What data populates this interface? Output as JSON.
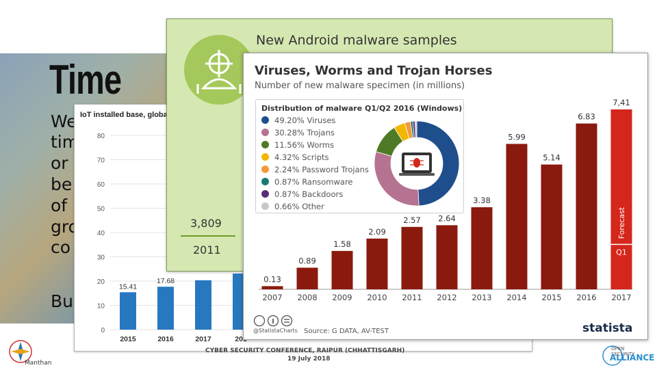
{
  "slide": {
    "title": "Time",
    "text_lines": [
      "We",
      "tim",
      "or",
      "be",
      "of",
      "gro",
      "co"
    ],
    "bottom_text": "Bu",
    "conference_line1": "CYBER SECURITY CONFERENCE, RAIPUR (CHHATTISGARH)",
    "conference_line2": "19 July 2018",
    "logo_left_text": "Manthan",
    "logo_right_text_1": "OPEN SECURITY",
    "logo_right_text_2": "ALLIANCE"
  },
  "iot_chart": {
    "title": "IoT installed base, globa",
    "chart_data": {
      "type": "bar",
      "title": "IoT installed base, globa",
      "categories": [
        "2015",
        "2016",
        "2017",
        "201"
      ],
      "values": [
        15.41,
        17.68,
        20.35,
        23.1
      ],
      "value_labels": [
        "15.41",
        "17.68",
        "",
        ""
      ],
      "yticks": [
        0,
        10,
        20,
        30,
        40,
        50,
        60,
        70,
        80
      ],
      "ylim": [
        0,
        80
      ],
      "color": "#2878c0",
      "grid": true
    }
  },
  "android_chart": {
    "title": "New Android malware samples",
    "value": "3,809",
    "year": "2011",
    "circle_color": "#a4c85b",
    "icon": "android-robot-target-icon"
  },
  "statista_chart": {
    "title": "Viruses, Worms and Trojan Horses",
    "subtitle": "Number of new malware specimen (in millions)",
    "forecast_label": "Forecast",
    "q1_label": "Q1",
    "source": "Source: G DATA, AV-TEST",
    "handle": "@StatistaCharts",
    "logo": "statista",
    "chart_data": {
      "type": "bar",
      "title": "Viruses, Worms and Trojan Horses",
      "ylabel": "",
      "categories": [
        "2007",
        "2008",
        "2009",
        "2010",
        "2011",
        "2012",
        "2013",
        "2014",
        "2015",
        "2016",
        "2017"
      ],
      "values": [
        0.13,
        0.89,
        1.58,
        2.09,
        2.57,
        2.64,
        3.38,
        5.99,
        5.14,
        6.83,
        7.41
      ],
      "value_labels": [
        "0.13",
        "0.89",
        "1.58",
        "2.09",
        "2.57",
        "2.64",
        "3.38",
        "5.99",
        "5.14",
        "6.83",
        "7,41"
      ],
      "q1_value": 1.85,
      "ylim": [
        0,
        7.41
      ],
      "bar_color": "#8b1a0e",
      "forecast_color": "#d5261b",
      "grid": false
    },
    "pie": {
      "title": "Distribution of malware Q1/Q2 2016 (Windows)",
      "chart_data": {
        "type": "pie",
        "labels": [
          "Viruses",
          "Trojans",
          "Worms",
          "Scripts",
          "Password Trojans",
          "Ransomware",
          "Backdoors",
          "Other"
        ],
        "values": [
          49.2,
          30.28,
          11.56,
          4.32,
          2.24,
          0.87,
          0.87,
          0.66
        ],
        "legend_texts": [
          "49.20% Viruses",
          "30.28% Trojans",
          "11.56% Worms",
          "4.32% Scripts",
          "2.24% Password Trojans",
          "0.87% Ransomware",
          "0.87% Backdoors",
          "0.66% Other"
        ],
        "colors": [
          "#1f4e8c",
          "#b57391",
          "#4f7a25",
          "#f2b705",
          "#f49a3c",
          "#1a7a73",
          "#5a2d7a",
          "#c8c8c8"
        ]
      },
      "center_icon": "bug-laptop-icon"
    }
  }
}
